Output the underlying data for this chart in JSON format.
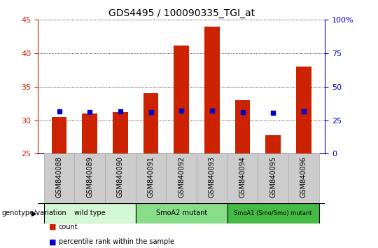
{
  "title": "GDS4495 / 100090335_TGI_at",
  "samples": [
    "GSM840088",
    "GSM840089",
    "GSM840090",
    "GSM840091",
    "GSM840092",
    "GSM840093",
    "GSM840094",
    "GSM840095",
    "GSM840096"
  ],
  "counts": [
    30.5,
    31.0,
    31.2,
    34.0,
    41.2,
    44.0,
    33.0,
    27.8,
    38.0
  ],
  "percentile_ranks": [
    31.5,
    31.0,
    31.5,
    31.2,
    32.0,
    32.3,
    31.2,
    30.7,
    31.7
  ],
  "groups": [
    {
      "label": "wild type",
      "start": 0,
      "end": 3,
      "color": "#d4f7d4"
    },
    {
      "label": "SmoA2 mutant",
      "start": 3,
      "end": 6,
      "color": "#88dd88"
    },
    {
      "label": "SmoA1 (Smo/Smo) mutant",
      "start": 6,
      "end": 9,
      "color": "#44bb44"
    }
  ],
  "ymin": 25,
  "ymax": 45,
  "yticks_left": [
    25,
    30,
    35,
    40,
    45
  ],
  "yticks_right": [
    0,
    25,
    50,
    75,
    100
  ],
  "bar_color": "#cc2200",
  "dot_color": "#0000cc",
  "grid_color": "#000000",
  "axis_color_left": "#cc2200",
  "axis_color_right": "#0000cc",
  "legend_count_label": "count",
  "legend_pct_label": "percentile rank within the sample",
  "xlabel_group": "genotype/variation",
  "background_color": "#ffffff",
  "bar_width": 0.5,
  "tick_label_bg": "#cccccc",
  "right_axis_label": "100%"
}
